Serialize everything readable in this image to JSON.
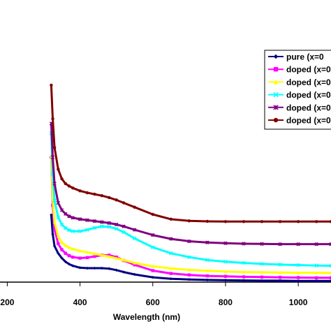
{
  "chart_data": {
    "type": "line",
    "title": "",
    "xlabel": "Wavelength (nm)",
    "ylabel": "",
    "xlim": [
      180,
      1090
    ],
    "ylim": [
      0,
      1
    ],
    "x_ticks": [
      "200",
      "400",
      "600",
      "800",
      "1000"
    ],
    "grid": false,
    "legend_position": "top-right",
    "series": [
      {
        "name": "pure    (x=0",
        "color": "#000080",
        "marker": "diamond",
        "x": [
          321,
          325,
          330,
          340,
          350,
          360,
          370,
          380,
          400,
          420,
          440,
          460,
          480,
          500,
          520,
          550,
          600,
          650,
          700,
          750,
          800,
          850,
          900,
          950,
          1000,
          1050,
          1090
        ],
        "y": [
          0.28,
          0.2,
          0.15,
          0.12,
          0.1,
          0.085,
          0.075,
          0.068,
          0.06,
          0.058,
          0.058,
          0.058,
          0.056,
          0.05,
          0.042,
          0.032,
          0.02,
          0.014,
          0.011,
          0.009,
          0.008,
          0.007,
          0.006,
          0.006,
          0.005,
          0.005,
          0.005
        ]
      },
      {
        "name": "doped (x=0",
        "color": "#ff00ff",
        "marker": "square",
        "x": [
          321,
          325,
          330,
          340,
          350,
          360,
          370,
          380,
          400,
          420,
          440,
          460,
          480,
          500,
          520,
          550,
          600,
          650,
          700,
          750,
          800,
          850,
          900,
          950,
          1000,
          1050,
          1090
        ],
        "y": [
          0.52,
          0.32,
          0.22,
          0.16,
          0.135,
          0.12,
          0.11,
          0.104,
          0.1,
          0.102,
          0.107,
          0.112,
          0.112,
          0.104,
          0.09,
          0.072,
          0.048,
          0.036,
          0.03,
          0.026,
          0.024,
          0.022,
          0.021,
          0.02,
          0.019,
          0.018,
          0.018
        ]
      },
      {
        "name": "doped (x=0",
        "color": "#ffff00",
        "marker": "triangle",
        "x": [
          321,
          325,
          330,
          340,
          350,
          360,
          370,
          380,
          400,
          420,
          440,
          460,
          480,
          500,
          520,
          550,
          600,
          650,
          700,
          750,
          800,
          850,
          900,
          950,
          1000,
          1050,
          1090
        ],
        "y": [
          0.53,
          0.35,
          0.25,
          0.19,
          0.165,
          0.152,
          0.144,
          0.138,
          0.13,
          0.124,
          0.118,
          0.112,
          0.106,
          0.099,
          0.092,
          0.08,
          0.066,
          0.057,
          0.051,
          0.047,
          0.044,
          0.042,
          0.041,
          0.04,
          0.039,
          0.039,
          0.038
        ]
      },
      {
        "name": "doped (x=0",
        "color": "#00ffff",
        "marker": "x",
        "x": [
          321,
          325,
          330,
          340,
          350,
          360,
          370,
          380,
          400,
          420,
          440,
          460,
          480,
          500,
          520,
          550,
          600,
          650,
          700,
          750,
          800,
          850,
          900,
          950,
          1000,
          1050,
          1090
        ],
        "y": [
          0.62,
          0.45,
          0.34,
          0.27,
          0.24,
          0.225,
          0.216,
          0.212,
          0.212,
          0.218,
          0.226,
          0.232,
          0.23,
          0.222,
          0.208,
          0.182,
          0.145,
          0.12,
          0.104,
          0.092,
          0.085,
          0.08,
          0.076,
          0.073,
          0.071,
          0.069,
          0.068
        ]
      },
      {
        "name": "doped (x=0",
        "color": "#800080",
        "marker": "asterisk",
        "x": [
          321,
          325,
          330,
          340,
          350,
          360,
          370,
          380,
          400,
          420,
          440,
          460,
          480,
          500,
          520,
          550,
          600,
          650,
          700,
          750,
          800,
          850,
          900,
          950,
          1000,
          1050,
          1090
        ],
        "y": [
          0.66,
          0.52,
          0.41,
          0.33,
          0.3,
          0.284,
          0.274,
          0.268,
          0.262,
          0.258,
          0.254,
          0.25,
          0.246,
          0.24,
          0.232,
          0.218,
          0.196,
          0.18,
          0.17,
          0.165,
          0.162,
          0.16,
          0.159,
          0.158,
          0.158,
          0.158,
          0.158
        ]
      },
      {
        "name": "doped (x=0",
        "color": "#800000",
        "marker": "circle",
        "x": [
          321,
          325,
          330,
          340,
          350,
          360,
          370,
          380,
          400,
          420,
          440,
          460,
          480,
          500,
          520,
          550,
          600,
          650,
          700,
          750,
          800,
          850,
          900,
          950,
          1000,
          1050,
          1090
        ],
        "y": [
          0.82,
          0.68,
          0.56,
          0.47,
          0.43,
          0.41,
          0.4,
          0.392,
          0.38,
          0.372,
          0.366,
          0.36,
          0.352,
          0.342,
          0.33,
          0.312,
          0.282,
          0.262,
          0.255,
          0.253,
          0.252,
          0.252,
          0.252,
          0.252,
          0.252,
          0.252,
          0.252
        ]
      }
    ]
  }
}
